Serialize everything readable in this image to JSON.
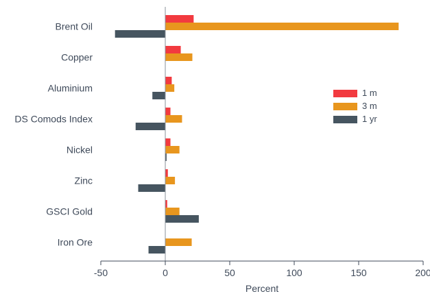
{
  "chart_data": {
    "type": "bar",
    "orientation": "horizontal",
    "categories": [
      "Brent Oil",
      "Copper",
      "Aluminium",
      "DS Comods Index",
      "Nickel",
      "Zinc",
      "GSCI Gold",
      "Iron Ore"
    ],
    "series": [
      {
        "name": "1 m",
        "values": [
          22,
          12,
          5,
          4,
          4,
          2,
          1.5,
          0
        ]
      },
      {
        "name": "3 m",
        "values": [
          181,
          21,
          7,
          13,
          11,
          7.5,
          11,
          20.5
        ]
      },
      {
        "name": "1 yr",
        "values": [
          -39,
          0,
          -10,
          -23,
          1,
          -21,
          26,
          -13
        ]
      }
    ],
    "colors": [
      "#f23a3f",
      "#e8961e",
      "#465560"
    ],
    "xlim": [
      -50,
      200
    ],
    "xticks": [
      -50,
      0,
      50,
      100,
      150,
      200
    ],
    "xlabel": "Percent",
    "ylabel": "",
    "title": "",
    "grid": false,
    "legend_position": "right-center"
  }
}
